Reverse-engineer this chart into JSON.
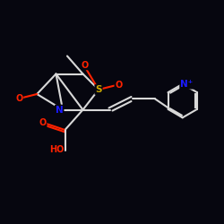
{
  "background_color": "#06060f",
  "bond_color": "#d8d8d8",
  "atom_colors": {
    "O": "#ff2200",
    "N": "#1a1aff",
    "S": "#ccaa00",
    "C": "#d8d8d8"
  },
  "figsize": [
    2.5,
    2.5
  ],
  "dpi": 100
}
